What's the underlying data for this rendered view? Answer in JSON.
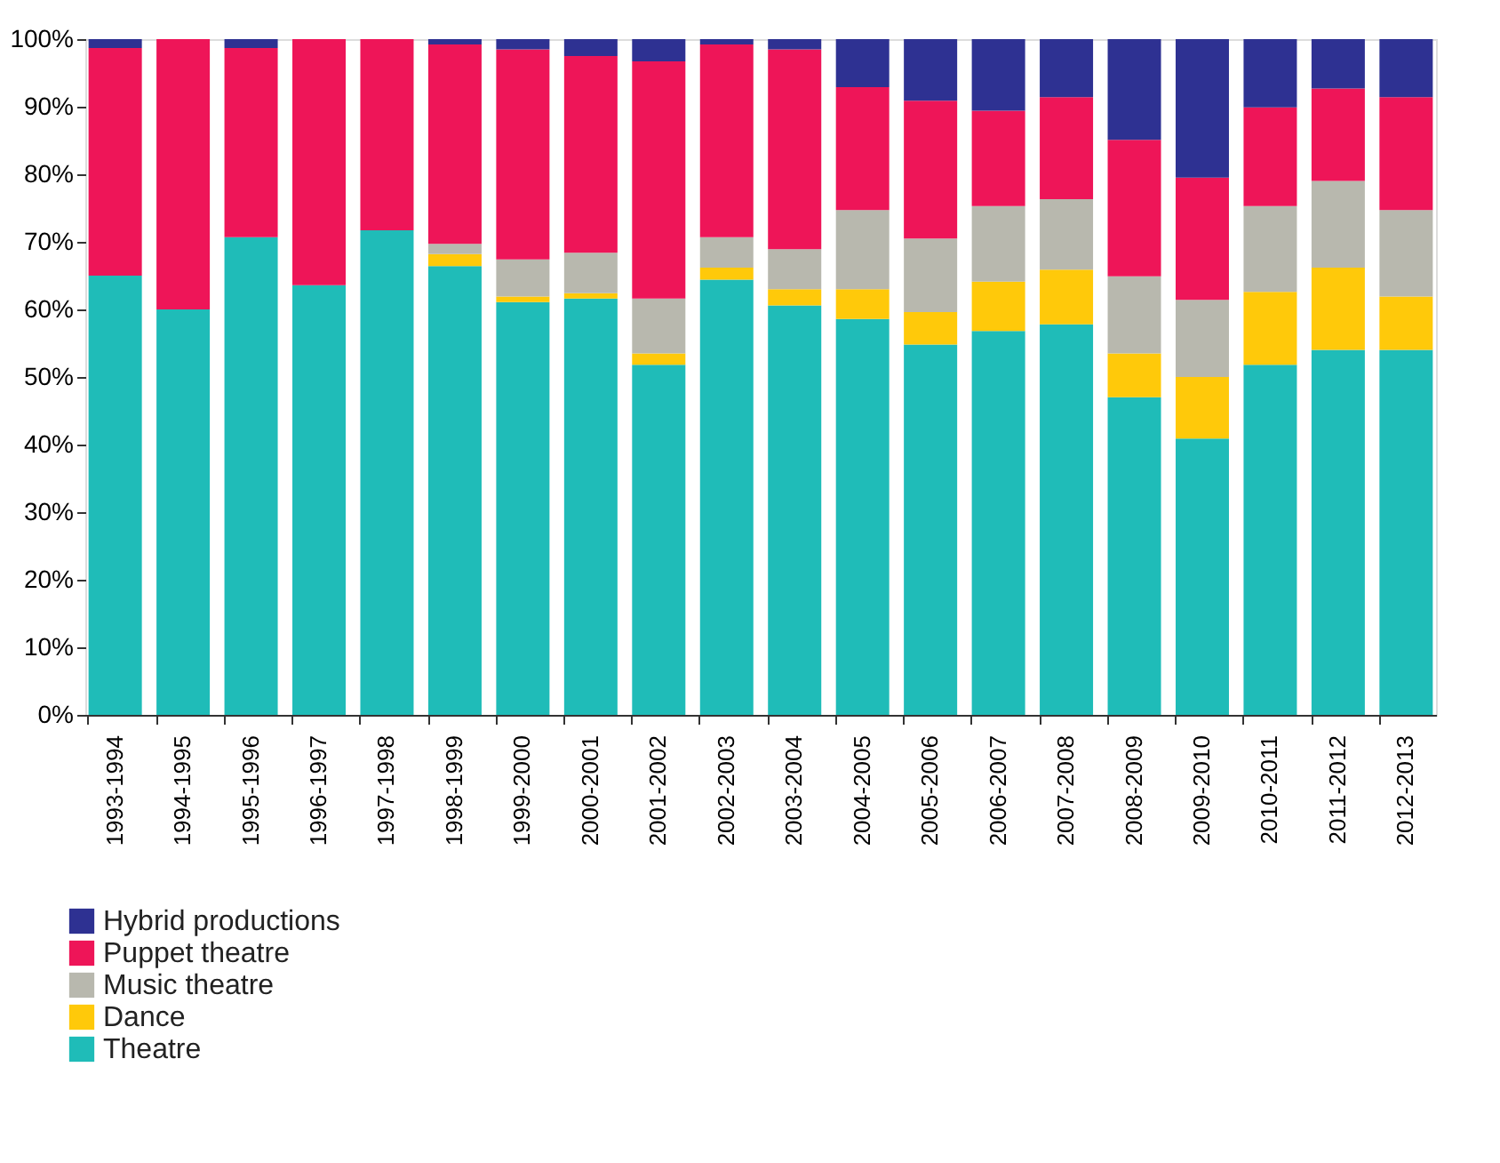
{
  "chart_data": {
    "type": "bar",
    "stacked": true,
    "legend": "bottom left",
    "grid": false,
    "categories": [
      "1993-1994",
      "1994-1995",
      "1995-1996",
      "1996-1997",
      "1997-1998",
      "1998-1999",
      "1999-2000",
      "2000-2001",
      "2001-2002",
      "2002-2003",
      "2003-2004",
      "2004-2005",
      "2005-2006",
      "2006-2007",
      "2007-2008",
      "2008-2009",
      "2009-2010",
      "2010-2011",
      "2011-2012",
      "2012-2013"
    ],
    "ylim": [
      0,
      100
    ],
    "yticks": [
      {
        "value": 0,
        "label": "0%"
      },
      {
        "value": 10,
        "label": "10%"
      },
      {
        "value": 20,
        "label": "20%"
      },
      {
        "value": 30,
        "label": "30%"
      },
      {
        "value": 40,
        "label": "40%"
      },
      {
        "value": 50,
        "label": "50%"
      },
      {
        "value": 60,
        "label": "60%"
      },
      {
        "value": 70,
        "label": "70%"
      },
      {
        "value": 80,
        "label": "80%"
      },
      {
        "value": 90,
        "label": "90%"
      },
      {
        "value": 100,
        "label": "100%"
      }
    ],
    "series": [
      {
        "name": "Theatre",
        "color": "#1fbcb8",
        "values": [
          65,
          60,
          70.7,
          63.6,
          71.7,
          66.4,
          61.1,
          61.6,
          51.8,
          64.4,
          60.6,
          58.6,
          54.8,
          56.8,
          57.8,
          47.0,
          40.9,
          51.8,
          54.0,
          54.0
        ]
      },
      {
        "name": "Dance",
        "color": "#ffc90a",
        "values": [
          0,
          0,
          0,
          0,
          0,
          1.8,
          0.8,
          0.8,
          1.7,
          1.8,
          2.4,
          4.4,
          4.8,
          7.3,
          8.1,
          6.5,
          9.1,
          10.8,
          12.2,
          7.9
        ]
      },
      {
        "name": "Music theatre",
        "color": "#b8b8ae",
        "values": [
          0,
          0,
          0,
          0,
          0,
          1.5,
          5.5,
          6.0,
          8.1,
          4.5,
          5.9,
          11.7,
          10.9,
          11.2,
          10.4,
          11.4,
          11.4,
          12.7,
          12.8,
          12.8
        ]
      },
      {
        "name": "Puppet theatre",
        "color": "#ee1558",
        "values": [
          33.7,
          40,
          28,
          36.4,
          28.3,
          29.5,
          31.1,
          29.1,
          35.1,
          28.5,
          29.6,
          18.2,
          20.4,
          14.1,
          15.1,
          20.2,
          18.1,
          14.6,
          13.7,
          16.7
        ]
      },
      {
        "name": "Hybrid productions",
        "color": "#2e3192",
        "values": [
          1.3,
          0,
          1.3,
          0,
          0,
          0.8,
          1.5,
          2.5,
          3.3,
          0.8,
          1.5,
          7.1,
          9.1,
          10.6,
          8.6,
          14.9,
          20.5,
          10.1,
          7.3,
          8.6
        ]
      }
    ]
  }
}
